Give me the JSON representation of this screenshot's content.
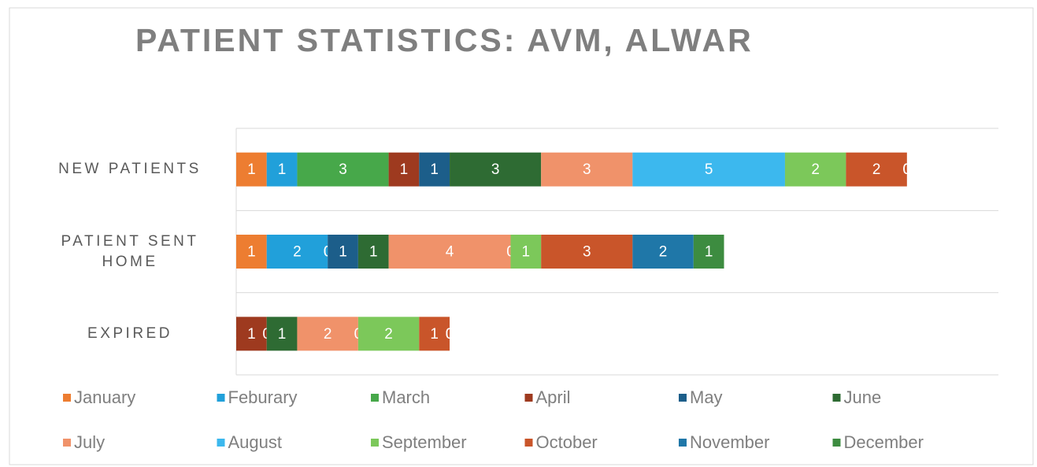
{
  "chart_data": {
    "type": "stacked_bar_horizontal",
    "title": "PATIENT STATISTICS: AVM, ALWAR",
    "categories": [
      "NEW PATIENTS",
      "PATIENT SENT HOME",
      "EXPIRED"
    ],
    "xlim": [
      0,
      25
    ],
    "series": [
      {
        "name": "January",
        "color": "#ed7d31",
        "values": [
          1,
          1,
          0
        ]
      },
      {
        "name": "Feburary",
        "color": "#21a0da",
        "values": [
          1,
          2,
          0
        ]
      },
      {
        "name": "March",
        "color": "#47a84a",
        "values": [
          3,
          0,
          0
        ]
      },
      {
        "name": "April",
        "color": "#9e3a1f",
        "values": [
          1,
          0,
          1
        ]
      },
      {
        "name": "May",
        "color": "#1c5e8a",
        "values": [
          1,
          1,
          0
        ]
      },
      {
        "name": "June",
        "color": "#2e6b33",
        "values": [
          3,
          1,
          1
        ]
      },
      {
        "name": "July",
        "color": "#f0926a",
        "values": [
          3,
          4,
          2
        ]
      },
      {
        "name": "August",
        "color": "#3cb8ee",
        "values": [
          5,
          0,
          0
        ]
      },
      {
        "name": "September",
        "color": "#7cc85a",
        "values": [
          2,
          1,
          2
        ]
      },
      {
        "name": "October",
        "color": "#c9552a",
        "values": [
          2,
          3,
          1
        ]
      },
      {
        "name": "November",
        "color": "#1f77a8",
        "values": [
          0,
          2,
          0
        ]
      },
      {
        "name": "December",
        "color": "#3d8c40",
        "values": [
          0,
          1,
          0
        ]
      }
    ]
  }
}
